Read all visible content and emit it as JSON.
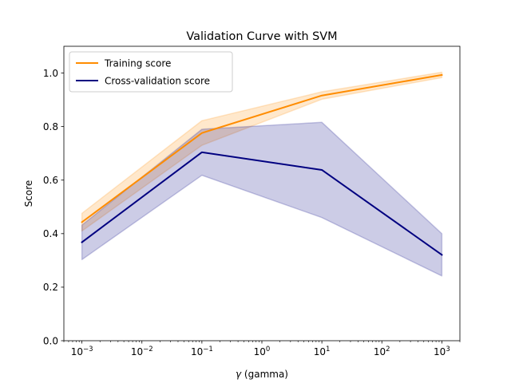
{
  "chart_data": {
    "type": "line",
    "title": "Validation Curve with SVM",
    "xlabel_symbol": "γ",
    "xlabel_text": " (gamma)",
    "ylabel": "Score",
    "x_scale": "log",
    "x": [
      0.001,
      0.1,
      10,
      1000
    ],
    "xlim": [
      0.0005,
      2000
    ],
    "ylim": [
      0.0,
      1.1
    ],
    "x_ticks": [
      {
        "value": 0.001,
        "base": "10",
        "exp": "−3"
      },
      {
        "value": 0.01,
        "base": "10",
        "exp": "−2"
      },
      {
        "value": 0.1,
        "base": "10",
        "exp": "−1"
      },
      {
        "value": 1,
        "base": "10",
        "exp": "0"
      },
      {
        "value": 10,
        "base": "10",
        "exp": "1"
      },
      {
        "value": 100,
        "base": "10",
        "exp": "2"
      },
      {
        "value": 1000,
        "base": "10",
        "exp": "3"
      }
    ],
    "y_ticks": [
      {
        "value": 0.0,
        "label": "0.0"
      },
      {
        "value": 0.2,
        "label": "0.2"
      },
      {
        "value": 0.4,
        "label": "0.4"
      },
      {
        "value": 0.6,
        "label": "0.6"
      },
      {
        "value": 0.8,
        "label": "0.8"
      },
      {
        "value": 1.0,
        "label": "1.0"
      }
    ],
    "grid": false,
    "legend_position": "top-left",
    "series": [
      {
        "name": "Training score",
        "color": "#ff8c00",
        "band_opacity": 0.2,
        "values": [
          0.443,
          0.776,
          0.916,
          0.993
        ],
        "lower": [
          0.41,
          0.73,
          0.902,
          0.983
        ],
        "upper": [
          0.476,
          0.822,
          0.93,
          1.003
        ]
      },
      {
        "name": "Cross-validation score",
        "color": "#000080",
        "band_opacity": 0.2,
        "values": [
          0.368,
          0.704,
          0.638,
          0.321
        ],
        "lower": [
          0.303,
          0.618,
          0.46,
          0.242
        ],
        "upper": [
          0.432,
          0.79,
          0.816,
          0.4
        ]
      }
    ]
  }
}
